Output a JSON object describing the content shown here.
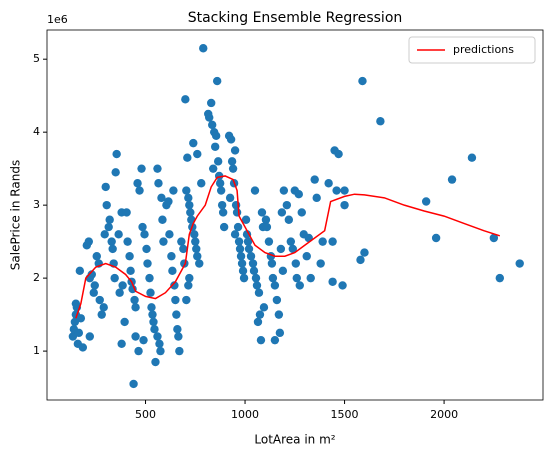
{
  "chart_data": {
    "type": "scatter",
    "title": "Stacking Ensemble Regression",
    "xlabel": "LotArea in m²",
    "ylabel": "SalePrice in Rands",
    "y_offset_label": "1e6",
    "xlim": [
      5,
      2497
    ],
    "ylim": [
      0.33,
      5.4
    ],
    "xticks": [
      500,
      1000,
      1500,
      2000
    ],
    "yticks": [
      1,
      2,
      3,
      4,
      5
    ],
    "legend": "upper right",
    "series": [
      {
        "type": "scatter",
        "color": "#1f77b4",
        "x": [
          135,
          140,
          145,
          150,
          155,
          150,
          160,
          165,
          175,
          170,
          185,
          205,
          215,
          220,
          230,
          240,
          245,
          255,
          265,
          270,
          220,
          280,
          290,
          295,
          300,
          305,
          315,
          320,
          330,
          335,
          340,
          345,
          350,
          355,
          380,
          365,
          370,
          385,
          380,
          395,
          405,
          410,
          420,
          425,
          430,
          435,
          445,
          450,
          460,
          480,
          470,
          450,
          465,
          440,
          490,
          485,
          495,
          505,
          510,
          520,
          525,
          530,
          535,
          540,
          545,
          560,
          570,
          575,
          550,
          580,
          585,
          590,
          560,
          565,
          605,
          615,
          620,
          630,
          635,
          645,
          650,
          655,
          660,
          665,
          670,
          640,
          680,
          690,
          695,
          710,
          740,
          705,
          715,
          720,
          725,
          730,
          735,
          745,
          750,
          755,
          760,
          770,
          715,
          705,
          720,
          700,
          790,
          760,
          780,
          820,
          830,
          835,
          860,
          845,
          850,
          865,
          870,
          875,
          880,
          885,
          890,
          895,
          855,
          815,
          840,
          920,
          930,
          935,
          940,
          945,
          955,
          960,
          965,
          970,
          975,
          980,
          985,
          990,
          995,
          950,
          950,
          925,
          1005,
          1010,
          1015,
          1020,
          1030,
          1040,
          1045,
          1055,
          1060,
          1070,
          1075,
          1080,
          1085,
          1090,
          1050,
          1095,
          1065,
          1105,
          1110,
          1120,
          1130,
          1135,
          1140,
          1150,
          1160,
          1170,
          1175,
          1150,
          1180,
          1190,
          1195,
          1185,
          1250,
          1270,
          1210,
          1220,
          1230,
          1240,
          1255,
          1260,
          1275,
          1285,
          1295,
          1350,
          1360,
          1320,
          1310,
          1330,
          1380,
          1390,
          1450,
          1470,
          1420,
          1440,
          1440,
          1490,
          1460,
          1500,
          1500,
          1590,
          1580,
          1600,
          1680,
          1910,
          1960,
          2040,
          2140,
          2250,
          2280,
          2380
        ],
        "y": [
          1.2,
          1.3,
          1.4,
          1.5,
          1.6,
          1.65,
          1.1,
          1.25,
          1.45,
          2.1,
          1.05,
          2.45,
          2.5,
          2.0,
          2.05,
          1.8,
          1.9,
          2.3,
          2.2,
          1.7,
          1.2,
          1.5,
          1.6,
          2.6,
          3.25,
          3.0,
          2.7,
          2.8,
          2.5,
          2.4,
          2.2,
          2.0,
          3.45,
          3.7,
          2.9,
          2.6,
          1.8,
          1.9,
          1.1,
          1.4,
          2.9,
          2.5,
          2.3,
          2.1,
          1.95,
          1.85,
          1.7,
          1.6,
          3.3,
          3.5,
          3.2,
          1.2,
          1.0,
          0.55,
          1.15,
          2.7,
          2.6,
          2.4,
          2.2,
          2.0,
          1.8,
          1.6,
          1.5,
          1.4,
          1.3,
          1.2,
          1.1,
          1.0,
          0.85,
          3.1,
          2.8,
          2.5,
          3.5,
          3.3,
          3.0,
          3.05,
          2.6,
          2.3,
          2.1,
          1.9,
          1.7,
          1.5,
          1.3,
          1.2,
          1.0,
          3.2,
          2.5,
          2.4,
          2.2,
          3.65,
          3.85,
          3.2,
          3.1,
          3.0,
          2.9,
          2.8,
          2.7,
          2.6,
          2.5,
          2.4,
          2.3,
          2.2,
          1.9,
          1.7,
          2.0,
          4.45,
          5.15,
          3.7,
          3.3,
          4.2,
          4.4,
          4.1,
          4.7,
          4.0,
          3.8,
          3.6,
          3.4,
          3.3,
          3.2,
          3.0,
          2.9,
          2.7,
          3.95,
          4.25,
          3.5,
          3.95,
          3.9,
          3.6,
          3.5,
          3.3,
          3.0,
          2.9,
          2.7,
          2.5,
          2.4,
          2.3,
          2.2,
          2.1,
          2.0,
          2.6,
          3.75,
          3.1,
          2.8,
          2.6,
          2.5,
          2.4,
          2.3,
          2.2,
          2.1,
          2.0,
          1.9,
          1.8,
          1.5,
          1.15,
          2.9,
          2.7,
          3.2,
          1.6,
          1.4,
          2.8,
          2.7,
          2.5,
          2.3,
          2.2,
          2.0,
          1.9,
          1.7,
          1.5,
          1.25,
          1.15,
          2.4,
          2.1,
          3.2,
          2.9,
          3.2,
          3.15,
          3.0,
          2.8,
          2.5,
          2.4,
          2.2,
          2.0,
          1.9,
          2.9,
          2.6,
          3.35,
          3.1,
          2.55,
          2.3,
          2.0,
          2.2,
          2.5,
          3.75,
          3.7,
          3.3,
          2.5,
          1.95,
          1.9,
          3.2,
          3.2,
          3.0,
          4.7,
          2.25,
          2.35,
          4.15,
          3.05,
          2.55,
          3.35,
          3.65,
          2.55,
          2.0,
          2.2
        ]
      },
      {
        "type": "line",
        "name": "predictions",
        "color": "#ff0000",
        "x": [
          150,
          175,
          200,
          250,
          300,
          350,
          400,
          430,
          450,
          500,
          550,
          600,
          650,
          700,
          720,
          740,
          760,
          800,
          830,
          860,
          900,
          940,
          960,
          970,
          1000,
          1050,
          1100,
          1150,
          1200,
          1250,
          1300,
          1400,
          1430,
          1500,
          1550,
          1600,
          1700,
          1800,
          1900,
          2000,
          2100,
          2200,
          2280
        ],
        "y": [
          1.45,
          1.65,
          2.0,
          2.15,
          2.2,
          2.15,
          2.05,
          1.95,
          1.82,
          1.75,
          1.72,
          1.8,
          1.95,
          2.2,
          2.6,
          2.75,
          2.85,
          3.0,
          3.25,
          3.38,
          3.4,
          3.35,
          3.2,
          2.85,
          2.7,
          2.45,
          2.35,
          2.3,
          2.3,
          2.35,
          2.45,
          2.65,
          3.05,
          3.12,
          3.15,
          3.14,
          3.1,
          3.0,
          2.92,
          2.85,
          2.75,
          2.65,
          2.58
        ]
      }
    ]
  }
}
